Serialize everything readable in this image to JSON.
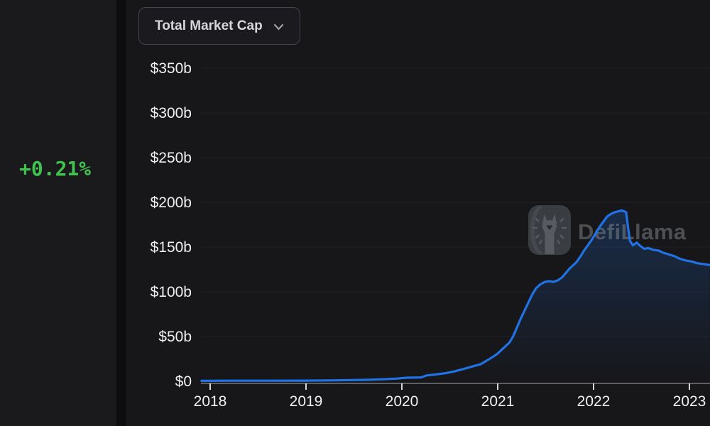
{
  "header": {
    "metric_button": {
      "label": "Total Market Cap",
      "icon": "chevron-down-icon"
    }
  },
  "sidebar": {
    "change_badge": {
      "value": "+0.21%",
      "color": "#3fc24e"
    }
  },
  "watermark": {
    "brand": "DefiLlama",
    "logo": "defillama-llama-logo"
  },
  "chart_data": {
    "type": "area",
    "title": "Total Market Cap",
    "unit": "USD billions",
    "grid": "horizontal",
    "legend": "none",
    "xlim": [
      2017.91,
      2023.21
    ],
    "ylim": [
      0,
      372
    ],
    "x_ticks": {
      "values": [
        2018,
        2019,
        2020,
        2021,
        2022,
        2023
      ],
      "labels": [
        "2018",
        "2019",
        "2020",
        "2021",
        "2022",
        "2023"
      ]
    },
    "y_ticks": {
      "values": [
        350,
        300,
        250,
        200,
        150,
        100,
        50,
        0
      ],
      "labels": [
        "$350b",
        "$300b",
        "$250b",
        "$200b",
        "$150b",
        "$100b",
        "$50b",
        "$0"
      ]
    },
    "line_color": "#2172e5",
    "area_gradient_top": "rgba(33,114,229,0.24)",
    "area_gradient_bottom": "rgba(33,114,229,0)",
    "series": [
      {
        "name": "Total Market Cap",
        "points": [
          [
            2017.91,
            0.5
          ],
          [
            2018.2,
            0.6
          ],
          [
            2018.6,
            0.6
          ],
          [
            2019.0,
            0.7
          ],
          [
            2019.3,
            1.0
          ],
          [
            2019.6,
            1.5
          ],
          [
            2019.8,
            2.2
          ],
          [
            2019.95,
            3.0
          ],
          [
            2020.05,
            4.0
          ],
          [
            2020.2,
            4.3
          ],
          [
            2020.26,
            6.5
          ],
          [
            2020.35,
            7.5
          ],
          [
            2020.45,
            9.0
          ],
          [
            2020.55,
            11.0
          ],
          [
            2020.65,
            14.0
          ],
          [
            2020.75,
            17.0
          ],
          [
            2020.82,
            19.0
          ],
          [
            2020.9,
            24.0
          ],
          [
            2020.96,
            28.0
          ],
          [
            2021.0,
            31.0
          ],
          [
            2021.05,
            36.0
          ],
          [
            2021.09,
            40.0
          ],
          [
            2021.12,
            43.0
          ],
          [
            2021.16,
            50.0
          ],
          [
            2021.2,
            60.0
          ],
          [
            2021.24,
            70.0
          ],
          [
            2021.28,
            79.0
          ],
          [
            2021.32,
            88.0
          ],
          [
            2021.36,
            97.0
          ],
          [
            2021.4,
            104.0
          ],
          [
            2021.44,
            108.0
          ],
          [
            2021.49,
            111.0
          ],
          [
            2021.54,
            112.0
          ],
          [
            2021.58,
            111.0
          ],
          [
            2021.63,
            113.0
          ],
          [
            2021.67,
            116.0
          ],
          [
            2021.71,
            121.0
          ],
          [
            2021.75,
            126.0
          ],
          [
            2021.78,
            129.0
          ],
          [
            2021.82,
            133.0
          ],
          [
            2021.86,
            139.0
          ],
          [
            2021.9,
            146.0
          ],
          [
            2021.94,
            152.0
          ],
          [
            2021.98,
            158.0
          ],
          [
            2022.02,
            165.0
          ],
          [
            2022.06,
            172.0
          ],
          [
            2022.1,
            178.0
          ],
          [
            2022.14,
            184.0
          ],
          [
            2022.18,
            187.0
          ],
          [
            2022.22,
            189.0
          ],
          [
            2022.26,
            190.0
          ],
          [
            2022.29,
            191.0
          ],
          [
            2022.32,
            190.0
          ],
          [
            2022.34,
            189.0
          ],
          [
            2022.36,
            172.0
          ],
          [
            2022.38,
            157.0
          ],
          [
            2022.41,
            152.0
          ],
          [
            2022.45,
            155.0
          ],
          [
            2022.49,
            151.0
          ],
          [
            2022.53,
            148.0
          ],
          [
            2022.57,
            149.0
          ],
          [
            2022.62,
            147.0
          ],
          [
            2022.68,
            146.0
          ],
          [
            2022.72,
            144.0
          ],
          [
            2022.78,
            142.0
          ],
          [
            2022.84,
            140.0
          ],
          [
            2022.9,
            137.0
          ],
          [
            2022.96,
            135.0
          ],
          [
            2023.02,
            134.0
          ],
          [
            2023.08,
            132.0
          ],
          [
            2023.15,
            131.0
          ],
          [
            2023.21,
            130.0
          ]
        ]
      }
    ]
  }
}
